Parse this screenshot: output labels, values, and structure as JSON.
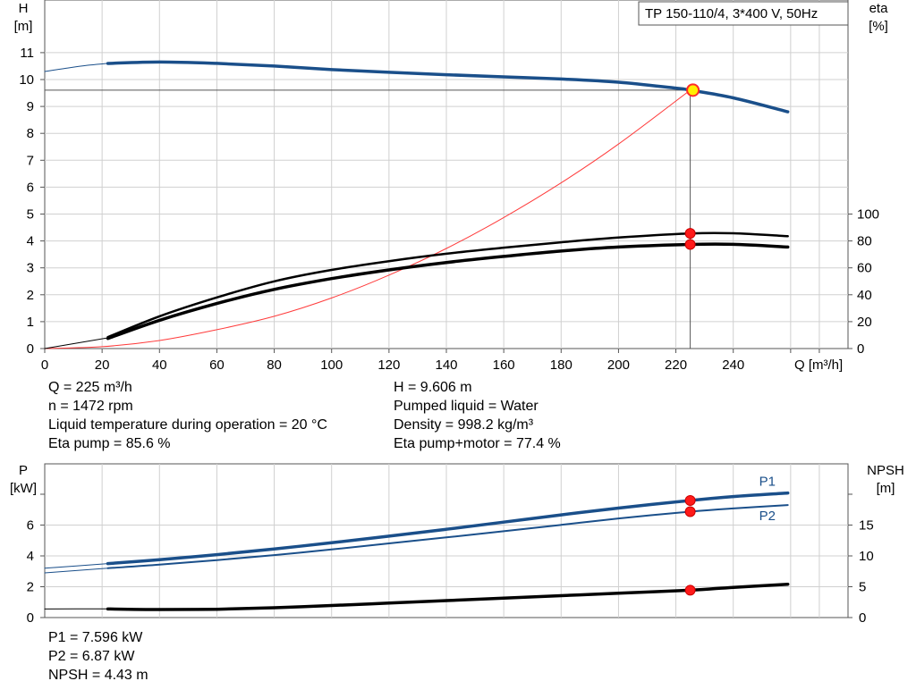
{
  "chart_data": [
    {
      "type": "line",
      "title": "TP 150-110/4, 3*400 V, 50Hz",
      "xlabel": "Q [m³/h]",
      "ylabel_left": "H\n[m]",
      "ylabel_right": "eta\n[%]",
      "xlim": [
        0,
        280
      ],
      "ylim_left": [
        0,
        12
      ],
      "ylim_right": [
        0,
        100
      ],
      "x_ticks": [
        0,
        20,
        40,
        60,
        80,
        100,
        120,
        140,
        160,
        180,
        200,
        220,
        240
      ],
      "y_ticks_left": [
        0,
        1,
        2,
        3,
        4,
        5,
        6,
        7,
        8,
        9,
        10,
        11
      ],
      "y_ticks_right": [
        0,
        20,
        40,
        60,
        80,
        100
      ],
      "grid": true,
      "series": [
        {
          "role": "head",
          "color": "#1a4f8a",
          "width": 3.5,
          "axis": "left",
          "x": [
            22,
            40,
            60,
            80,
            100,
            120,
            140,
            160,
            180,
            200,
            220,
            225,
            240,
            259
          ],
          "y": [
            10.6,
            10.65,
            10.6,
            10.5,
            10.37,
            10.27,
            10.18,
            10.1,
            10.02,
            9.9,
            9.68,
            9.606,
            9.32,
            8.8
          ]
        },
        {
          "role": "head-extension",
          "color": "#1a4f8a",
          "width": 1,
          "axis": "left",
          "x": [
            0,
            8,
            15,
            22
          ],
          "y": [
            10.3,
            10.43,
            10.53,
            10.6
          ]
        },
        {
          "role": "system-curve",
          "color": "#ff3b3b",
          "width": 1,
          "axis": "left",
          "x": [
            0,
            20,
            40,
            60,
            80,
            100,
            120,
            140,
            160,
            180,
            200,
            225
          ],
          "y": [
            0,
            0.07,
            0.3,
            0.7,
            1.2,
            1.88,
            2.73,
            3.72,
            4.87,
            6.16,
            7.6,
            9.606
          ]
        },
        {
          "role": "eta-pump",
          "color": "#000000",
          "width": 2.5,
          "axis": "right",
          "x": [
            22,
            40,
            60,
            80,
            100,
            120,
            140,
            160,
            180,
            200,
            225,
            240,
            259
          ],
          "y": [
            8.5,
            24,
            38,
            50,
            58.5,
            65,
            70.5,
            75,
            79,
            82.5,
            85.6,
            85.7,
            83.5
          ]
        },
        {
          "role": "eta-pump-motor",
          "color": "#000000",
          "width": 3.5,
          "axis": "right",
          "x": [
            22,
            40,
            60,
            80,
            100,
            120,
            140,
            160,
            180,
            200,
            225,
            240,
            259
          ],
          "y": [
            7.5,
            21,
            33.5,
            44,
            52,
            58.5,
            64,
            68.5,
            72.5,
            75.5,
            77.4,
            77.5,
            75.5
          ]
        },
        {
          "role": "eta-extension",
          "color": "#000000",
          "width": 1,
          "axis": "right",
          "x": [
            0,
            22
          ],
          "y": [
            0,
            8
          ]
        }
      ],
      "operating_point": {
        "x": 225,
        "y": 9.606,
        "eta_pump": 85.6,
        "eta_pump_motor": 77.4
      }
    },
    {
      "type": "line",
      "xlabel": "",
      "ylabel_left": "P\n[kW]",
      "ylabel_right": "NPSH\n[m]",
      "xlim": [
        0,
        280
      ],
      "ylim_left": [
        0,
        8.7
      ],
      "ylim_right": [
        0,
        21.75
      ],
      "y_ticks_left": [
        0,
        2,
        4,
        6
      ],
      "y_ticks_right": [
        0,
        5,
        10,
        15
      ],
      "grid": true,
      "series": [
        {
          "name": "P1",
          "color": "#1a4f8a",
          "width": 3.5,
          "axis": "left",
          "x": [
            22,
            40,
            60,
            80,
            100,
            120,
            140,
            160,
            180,
            200,
            225,
            240,
            259
          ],
          "y": [
            3.5,
            3.75,
            4.08,
            4.45,
            4.85,
            5.28,
            5.73,
            6.19,
            6.66,
            7.1,
            7.596,
            7.85,
            8.08
          ]
        },
        {
          "name": "P2",
          "color": "#1a4f8a",
          "width": 2,
          "axis": "left",
          "x": [
            22,
            40,
            60,
            80,
            100,
            120,
            140,
            160,
            180,
            200,
            225,
            240,
            259
          ],
          "y": [
            3.2,
            3.43,
            3.73,
            4.05,
            4.42,
            4.81,
            5.2,
            5.6,
            6.01,
            6.43,
            6.87,
            7.08,
            7.3
          ]
        },
        {
          "role": "P1-extension",
          "color": "#1a4f8a",
          "width": 1,
          "axis": "left",
          "x": [
            0,
            22
          ],
          "y": [
            3.2,
            3.5
          ]
        },
        {
          "role": "P2-extension",
          "color": "#1a4f8a",
          "width": 1,
          "axis": "left",
          "x": [
            0,
            22
          ],
          "y": [
            2.9,
            3.2
          ]
        },
        {
          "role": "npsh",
          "color": "#000000",
          "width": 3.5,
          "axis": "right",
          "x": [
            22,
            40,
            60,
            80,
            100,
            120,
            140,
            160,
            180,
            200,
            225,
            240,
            259
          ],
          "y": [
            1.4,
            1.3,
            1.35,
            1.6,
            1.95,
            2.35,
            2.75,
            3.15,
            3.55,
            3.95,
            4.43,
            4.9,
            5.4
          ]
        },
        {
          "role": "npsh-extension",
          "color": "#000000",
          "width": 1,
          "axis": "right",
          "x": [
            0,
            22
          ],
          "y": [
            1.4,
            1.4
          ]
        }
      ],
      "operating_point": {
        "x": 225,
        "P1": 7.596,
        "P2": 6.87,
        "NPSH": 4.43
      }
    }
  ],
  "info_top": [
    "Q = 225 m³/h",
    "n = 1472 rpm",
    "Liquid temperature during operation = 20 °C",
    "Eta pump = 85.6 %"
  ],
  "info_top_right": [
    "H = 9.606 m",
    "Pumped liquid = Water",
    "Density = 998.2 kg/m³",
    "Eta pump+motor = 77.4 %"
  ],
  "info_bottom": [
    "P1 = 7.596 kW",
    "P2 = 6.87 kW",
    "NPSH = 4.43 m"
  ]
}
